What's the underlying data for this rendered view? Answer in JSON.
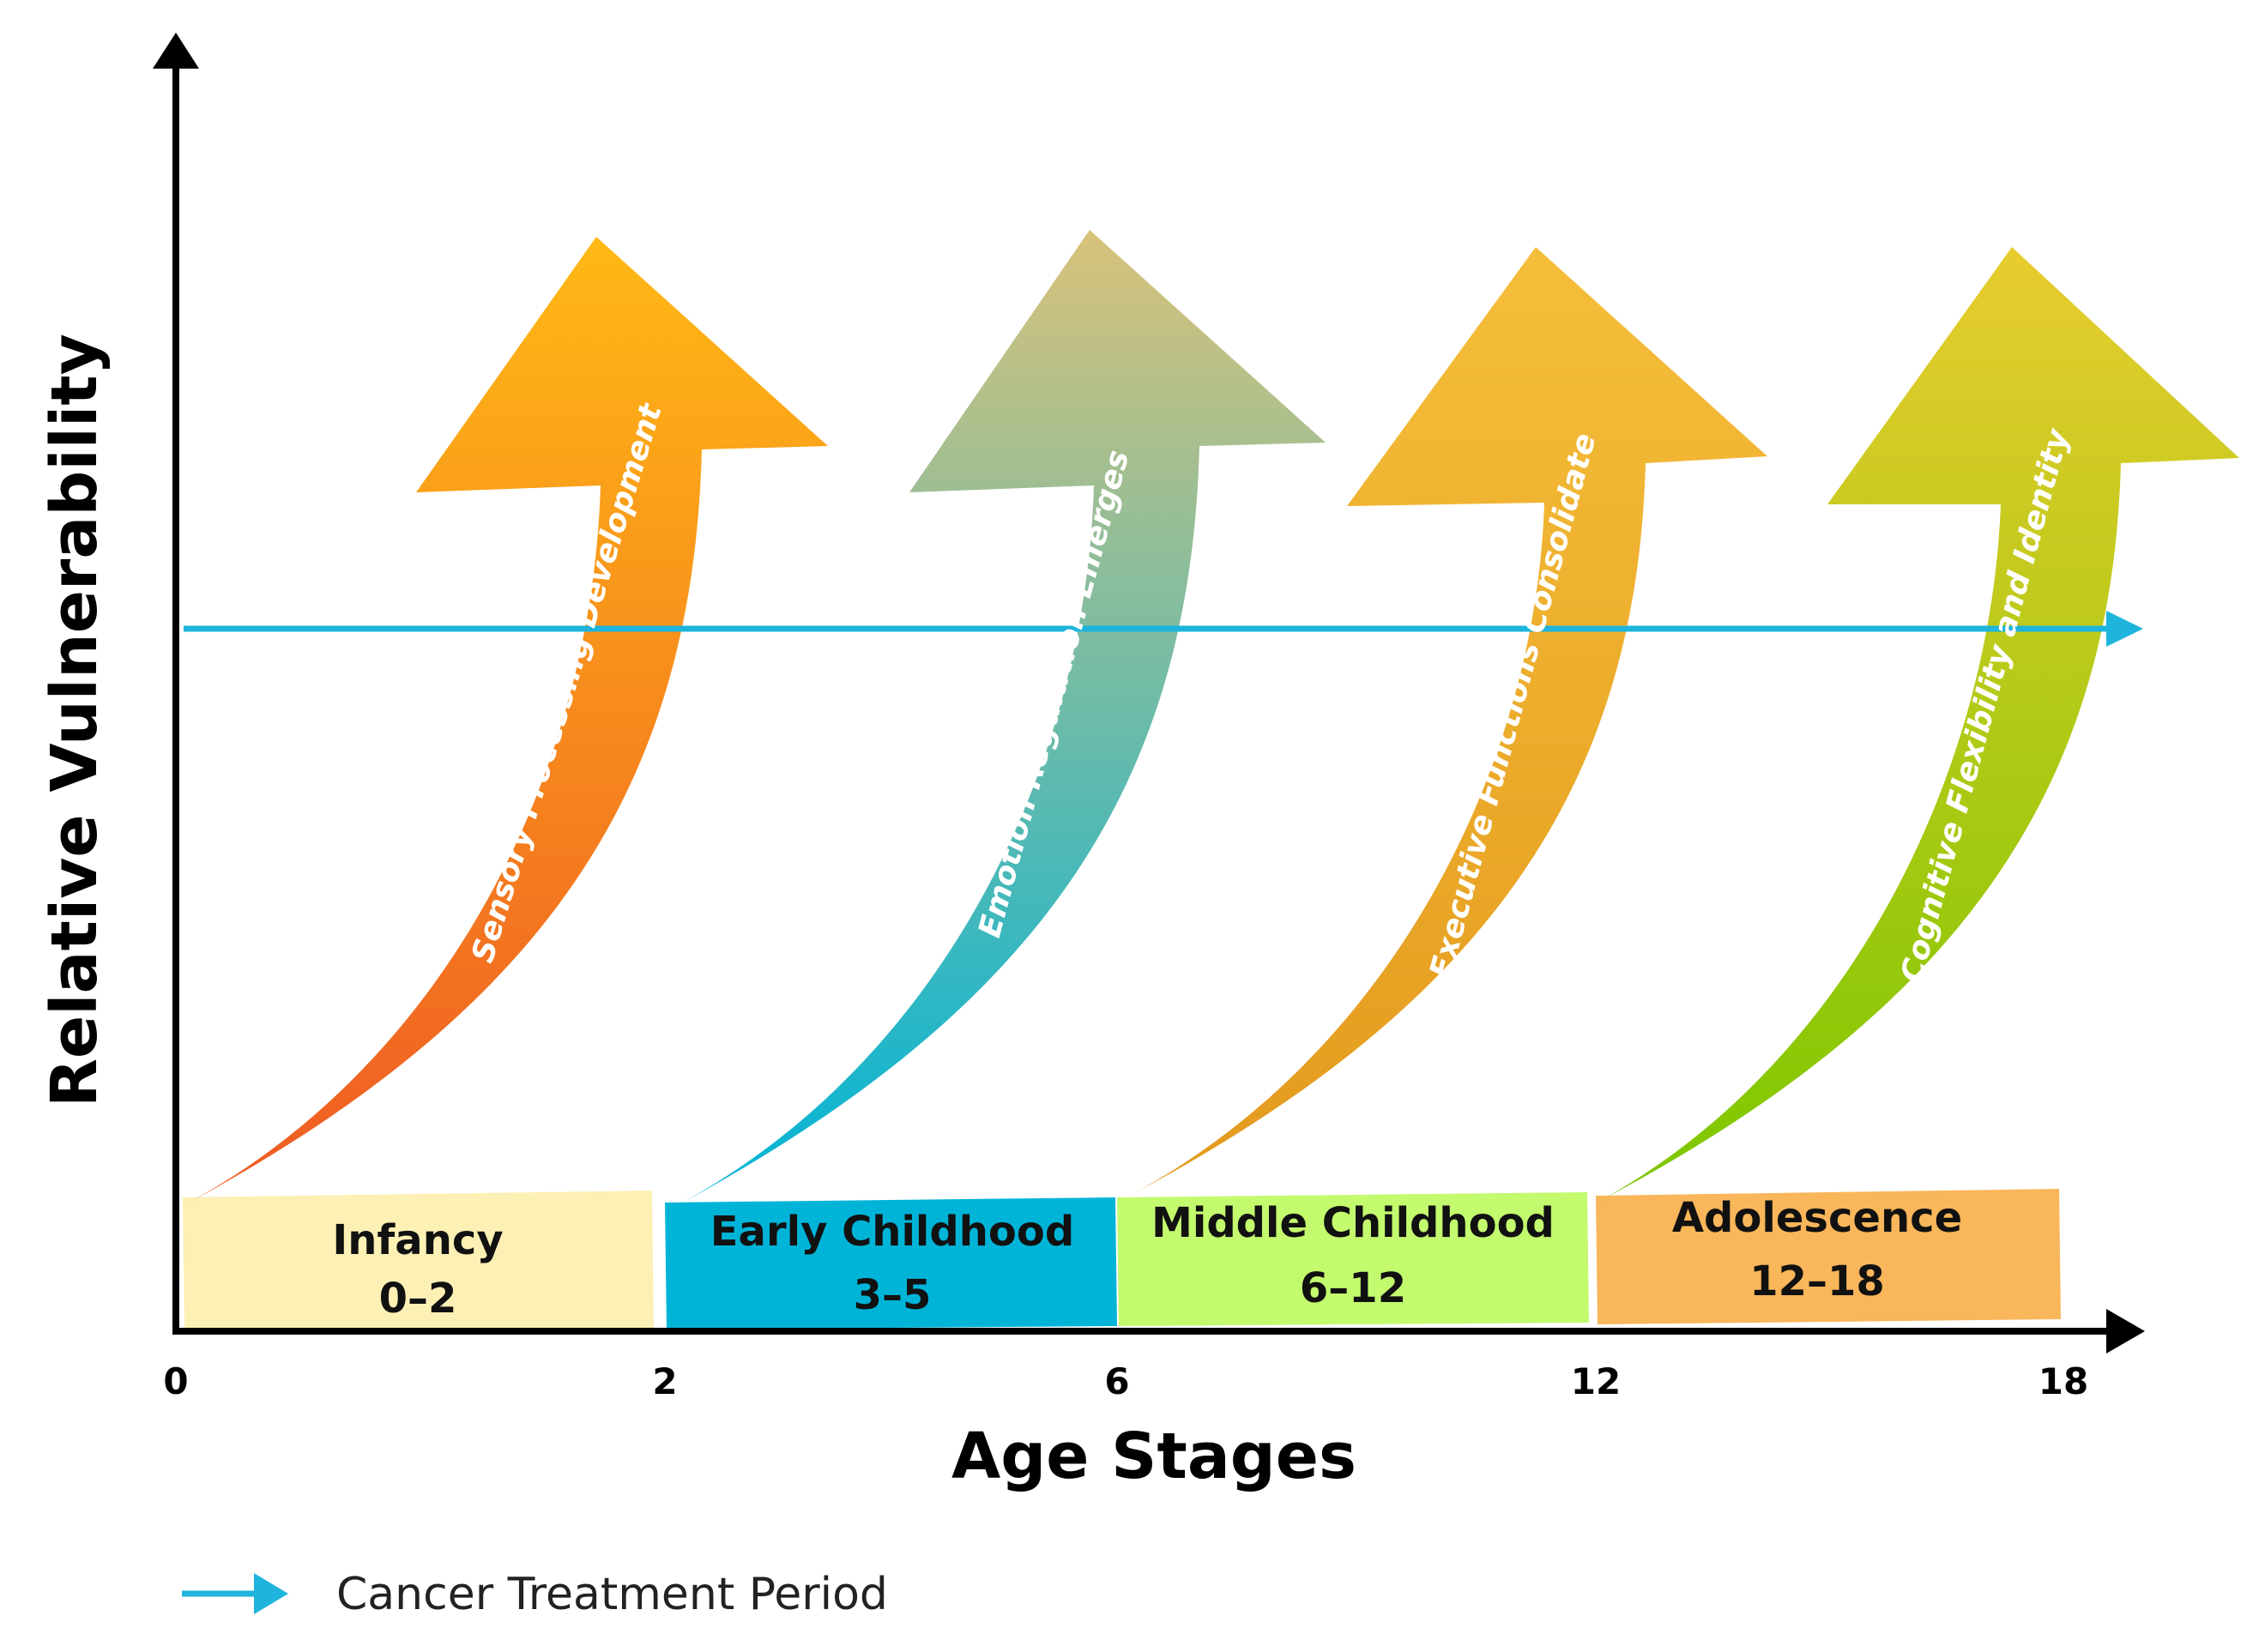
{
  "diagram": {
    "y_axis_title": "Relative Vulnerability",
    "x_axis_title": "Age Stages",
    "ticks": [
      "0",
      "2",
      "6",
      "12",
      "18"
    ],
    "stages": [
      {
        "name": "Infancy",
        "range": "0–2",
        "color": "#FDF0B5"
      },
      {
        "name": "Early Childhood",
        "range": "3–5",
        "color": "#00B4D8"
      },
      {
        "name": "Middle Childhood",
        "range": "6–12",
        "color": "#C3FA6E"
      },
      {
        "name": "Adolescence",
        "range": "12–18",
        "color": "#F9B65A"
      }
    ],
    "arrows": [
      {
        "label": "Sensory Processing Development",
        "color_top": "#FFB915",
        "color_bottom": "#EE5A24"
      },
      {
        "label": "Emotion Regulation Emerges",
        "color_top": "#D8C27A",
        "color_bottom": "#00B4D8"
      },
      {
        "label": "Executive Functions Consolidate",
        "color_top": "#F5BE3A",
        "color_bottom": "#E39A1E"
      },
      {
        "label": "Cognitive Flexibility and Identity",
        "color_top": "#E8CC2E",
        "color_bottom": "#7CC700"
      }
    ],
    "treatment_line_color": "#1EB4DC",
    "legend": {
      "label": "Cancer Treatment Period",
      "color": "#1EB4DC"
    }
  }
}
